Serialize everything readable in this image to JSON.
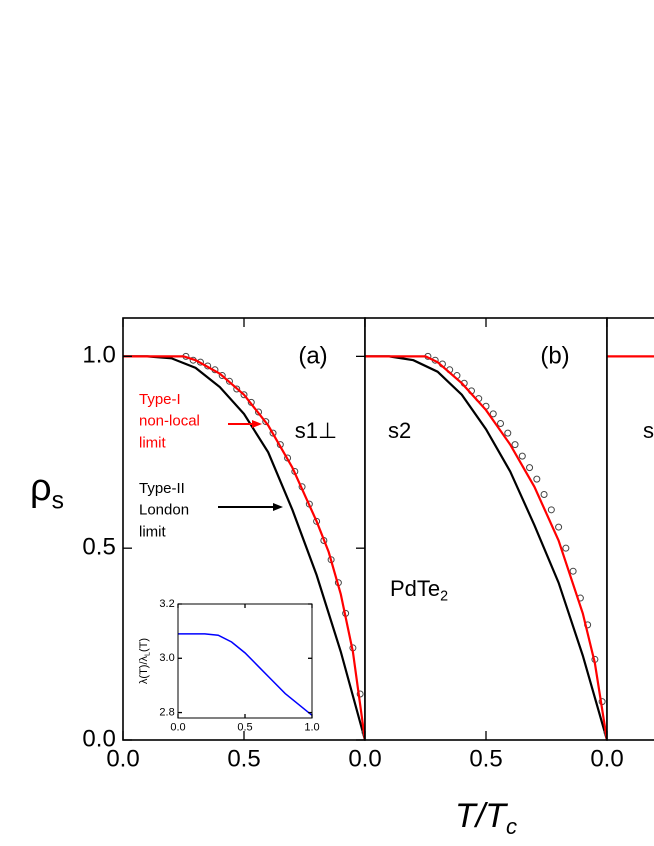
{
  "chart_data": [
    {
      "type": "line",
      "xlim": [
        0,
        1
      ],
      "ylim": [
        0,
        1.1
      ],
      "xticks": [
        {
          "value": 0,
          "label": "0.0"
        },
        {
          "value": 0.5,
          "label": "0.5"
        }
      ],
      "yticks": [
        {
          "value": 0,
          "label": "0.0"
        },
        {
          "value": 0.5,
          "label": "0.5"
        },
        {
          "value": 1,
          "label": "1.0"
        }
      ],
      "ylabel": {
        "text": "ρ",
        "subscript": "s"
      },
      "series": [
        {
          "type": "line",
          "color": "#000000",
          "x": [
            0,
            0.1,
            0.2,
            0.3,
            0.4,
            0.5,
            0.6,
            0.7,
            0.8,
            0.9,
            1.0
          ],
          "values": [
            1,
            1,
            0.995,
            0.97,
            0.92,
            0.85,
            0.75,
            0.6,
            0.43,
            0.23,
            0
          ]
        },
        {
          "type": "scatter",
          "color": "#444444",
          "x": [
            0.26,
            0.29,
            0.32,
            0.35,
            0.38,
            0.41,
            0.44,
            0.47,
            0.5,
            0.53,
            0.56,
            0.59,
            0.62,
            0.65,
            0.68,
            0.71,
            0.74,
            0.77,
            0.8,
            0.83,
            0.86,
            0.89,
            0.92,
            0.95,
            0.98,
            1.0
          ],
          "values": [
            1.0,
            0.99,
            0.985,
            0.975,
            0.965,
            0.95,
            0.935,
            0.915,
            0.9,
            0.88,
            0.855,
            0.83,
            0.8,
            0.77,
            0.735,
            0.7,
            0.66,
            0.615,
            0.57,
            0.52,
            0.47,
            0.41,
            0.33,
            0.24,
            0.12,
            0.02
          ]
        },
        {
          "type": "line",
          "color": "#ff0000",
          "x": [
            0,
            0.1,
            0.2,
            0.25,
            0.3,
            0.4,
            0.5,
            0.6,
            0.7,
            0.8,
            0.85,
            0.9,
            0.95,
            1.0
          ],
          "values": [
            1,
            1,
            1,
            1,
            0.99,
            0.955,
            0.9,
            0.82,
            0.71,
            0.57,
            0.49,
            0.38,
            0.23,
            0
          ]
        }
      ],
      "annotations": [
        {
          "text": [
            "(a)"
          ]
        },
        {
          "text": [
            "s1⊥"
          ]
        },
        {
          "text": [
            "Type-I",
            "non-local",
            "limit"
          ],
          "color": "#ff0000"
        },
        {
          "text": [
            "Type-II",
            "London",
            "limit"
          ],
          "color": "#000000"
        }
      ]
    },
    {
      "type": "line",
      "xlim": [
        0,
        1
      ],
      "ylim": [
        2.78,
        3.2
      ],
      "xticks": [
        {
          "value": 0,
          "label": "0.0"
        },
        {
          "value": 0.5,
          "label": "0.5"
        },
        {
          "value": 1,
          "label": "1.0"
        }
      ],
      "yticks": [
        {
          "value": 2.8,
          "label": "2.8"
        },
        {
          "value": 3,
          "label": "3.0"
        },
        {
          "value": 3.2,
          "label": "3.2"
        }
      ],
      "ylabel": {
        "text": "λ(T)/λ",
        "subscript": "L",
        "suffix": "(T)"
      },
      "series": [
        {
          "type": "line",
          "color": "#0000ff",
          "x": [
            0,
            0.1,
            0.2,
            0.3,
            0.4,
            0.5,
            0.6,
            0.7,
            0.8,
            0.9,
            1.0
          ],
          "values": [
            3.09,
            3.09,
            3.09,
            3.085,
            3.06,
            3.02,
            2.97,
            2.92,
            2.87,
            2.83,
            2.79
          ]
        }
      ],
      "annotations": []
    },
    {
      "type": "line",
      "xlim": [
        0,
        1
      ],
      "ylim": [
        0,
        1.1
      ],
      "xticks": [
        {
          "value": 0,
          "label": "0.0"
        },
        {
          "value": 0.5,
          "label": "0.5"
        }
      ],
      "xlabel": {
        "text": "T/T",
        "subscript": "c"
      },
      "series": [
        {
          "type": "line",
          "color": "#000000",
          "x": [
            0,
            0.1,
            0.2,
            0.3,
            0.4,
            0.5,
            0.6,
            0.7,
            0.8,
            0.9,
            1.0
          ],
          "values": [
            1,
            1,
            0.99,
            0.96,
            0.9,
            0.81,
            0.7,
            0.56,
            0.41,
            0.22,
            0
          ]
        },
        {
          "type": "scatter",
          "color": "#444444",
          "x": [
            0.26,
            0.29,
            0.32,
            0.35,
            0.38,
            0.41,
            0.44,
            0.47,
            0.5,
            0.53,
            0.56,
            0.59,
            0.62,
            0.65,
            0.68,
            0.71,
            0.74,
            0.77,
            0.8,
            0.83,
            0.86,
            0.89,
            0.92,
            0.95,
            0.98,
            1.0
          ],
          "values": [
            1,
            0.99,
            0.98,
            0.965,
            0.95,
            0.93,
            0.91,
            0.89,
            0.87,
            0.85,
            0.825,
            0.8,
            0.77,
            0.74,
            0.71,
            0.68,
            0.64,
            0.6,
            0.555,
            0.5,
            0.44,
            0.37,
            0.3,
            0.21,
            0.1,
            0.02
          ]
        },
        {
          "type": "line",
          "color": "#ff0000",
          "x": [
            0,
            0.1,
            0.2,
            0.25,
            0.3,
            0.4,
            0.5,
            0.6,
            0.7,
            0.8,
            0.9,
            0.95,
            1.0
          ],
          "values": [
            1,
            1,
            1,
            1,
            0.985,
            0.93,
            0.86,
            0.77,
            0.66,
            0.52,
            0.33,
            0.2,
            0
          ]
        }
      ],
      "annotations": [
        {
          "text": [
            "(b)"
          ]
        },
        {
          "text": [
            "s2"
          ]
        },
        {
          "text": [
            "PdTe"
          ],
          "subscript": "2"
        }
      ]
    },
    {
      "type": "line",
      "xlim": [
        0,
        1
      ],
      "ylim": [
        0,
        1.1
      ],
      "xticks": [
        {
          "value": 0,
          "label": "0.0"
        }
      ],
      "series": [
        {
          "type": "line",
          "color": "#ff0000",
          "x": [
            0,
            0.1,
            0.2,
            0.3
          ],
          "values": [
            1,
            1,
            1,
            1
          ]
        }
      ],
      "annotations": [
        {
          "text": [
            "s"
          ]
        }
      ]
    }
  ]
}
